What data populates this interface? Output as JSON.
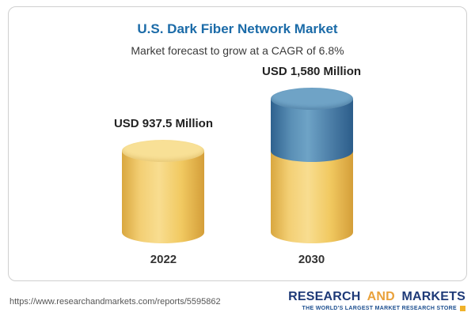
{
  "header": {
    "title": "U.S. Dark Fiber Network Market",
    "subtitle": "Market forecast to grow at a CAGR of 6.8%"
  },
  "chart_data": {
    "type": "bar",
    "title": "U.S. Dark Fiber Network Market",
    "subtitle": "Market forecast to grow at a CAGR of 6.8%",
    "unit": "USD Million",
    "categories": [
      "2022",
      "2030"
    ],
    "values": [
      937.5,
      1580
    ],
    "value_labels": [
      "USD 937.5 Million",
      "USD 1,580 Million"
    ],
    "cagr": "6.8%",
    "legend_position": "none",
    "grid": false,
    "colors": {
      "base": "#F2CB63",
      "growth": "#4D7FA8"
    }
  },
  "footer": {
    "url": "https://www.researchandmarkets.com/reports/5595862",
    "logo": {
      "word1": "RESEARCH",
      "word2": "AND",
      "word3": "MARKETS",
      "tagline": "THE WORLD'S LARGEST MARKET RESEARCH STORE"
    }
  }
}
